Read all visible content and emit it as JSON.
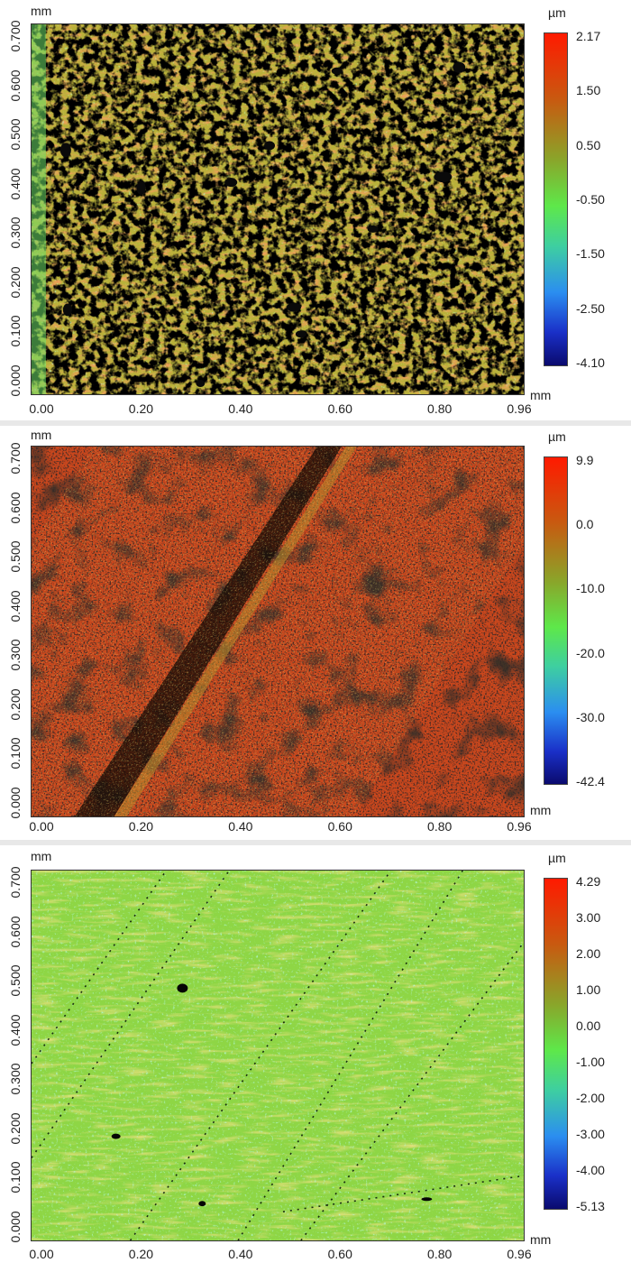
{
  "panels": [
    {
      "y_unit": "mm",
      "x_unit": "mm",
      "value_unit": "µm",
      "y_ticks": [
        "0.000",
        "0.100",
        "0.200",
        "0.300",
        "0.400",
        "0.500",
        "0.600",
        "0.700"
      ],
      "x_ticks": [
        "0.00",
        "0.20",
        "0.40",
        "0.60",
        "0.80",
        "0.96"
      ],
      "colorbar_ticks": [
        "2.17",
        "1.50",
        "0.50",
        "-0.50",
        "-1.50",
        "-2.50",
        "-4.10"
      ],
      "colorbar_range": [
        -4.1,
        2.17
      ],
      "dominant_color": "#b7b53a"
    },
    {
      "y_unit": "mm",
      "x_unit": "mm",
      "value_unit": "µm",
      "y_ticks": [
        "0.000",
        "0.100",
        "0.200",
        "0.300",
        "0.400",
        "0.500",
        "0.600",
        "0.700"
      ],
      "x_ticks": [
        "0.00",
        "0.20",
        "0.40",
        "0.60",
        "0.80",
        "0.96"
      ],
      "colorbar_ticks": [
        "9.9",
        "0.0",
        "-10.0",
        "-20.0",
        "-30.0",
        "-42.4"
      ],
      "colorbar_range": [
        -42.4,
        9.9
      ],
      "dominant_color": "#c8461e"
    },
    {
      "y_unit": "mm",
      "x_unit": "mm",
      "value_unit": "µm",
      "y_ticks": [
        "0.000",
        "0.100",
        "0.200",
        "0.300",
        "0.400",
        "0.500",
        "0.600",
        "0.700"
      ],
      "x_ticks": [
        "0.00",
        "0.20",
        "0.40",
        "0.60",
        "0.80",
        "0.96"
      ],
      "colorbar_ticks": [
        "4.29",
        "3.00",
        "2.00",
        "1.00",
        "0.00",
        "-1.00",
        "-2.00",
        "-3.00",
        "-4.00",
        "-5.13"
      ],
      "colorbar_range": [
        -5.13,
        4.29
      ],
      "dominant_color": "#8ed645"
    }
  ]
}
